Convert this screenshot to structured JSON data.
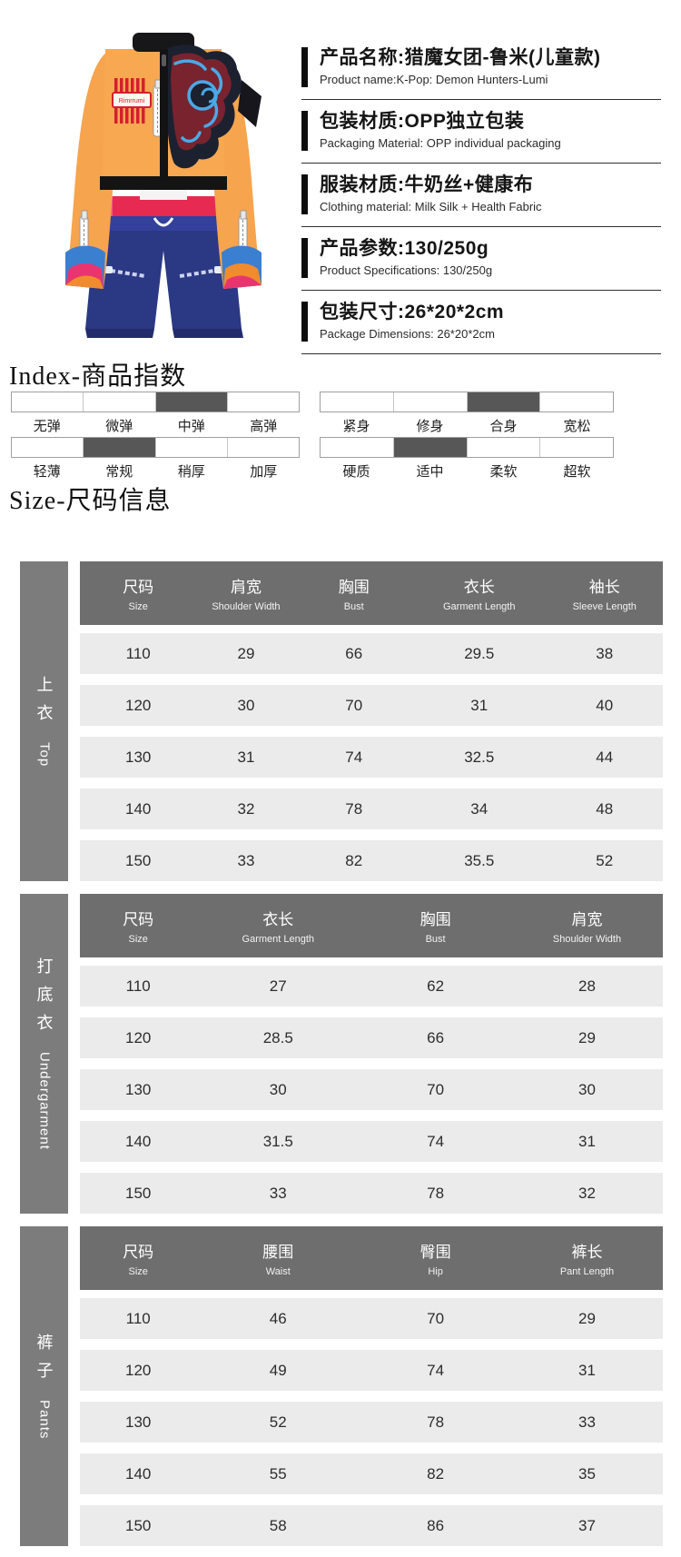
{
  "product": {
    "photo_alt": "orange cropped jacket with cloud print and navy shorts - kids costume",
    "info": [
      {
        "zh": "产品名称:猎魔女团-鲁米(儿童款)",
        "en": "Product name:K-Pop: Demon Hunters-Lumi"
      },
      {
        "zh": "包装材质:OPP独立包装",
        "en": "Packaging Material: OPP individual packaging"
      },
      {
        "zh": "服装材质:牛奶丝+健康布",
        "en": "Clothing material: Milk Silk + Health Fabric"
      },
      {
        "zh": "产品参数:130/250g",
        "en": "Product Specifications: 130/250g"
      },
      {
        "zh": "包装尺寸:26*20*2cm",
        "en": "Package Dimensions: 26*20*2cm"
      }
    ]
  },
  "index_section": {
    "title": "Index-商品指数",
    "groups": [
      {
        "name": "elasticity",
        "labels": [
          "无弹",
          "微弹",
          "中弹",
          "高弹"
        ],
        "selected": 2
      },
      {
        "name": "fit",
        "labels": [
          "紧身",
          "修身",
          "合身",
          "宽松"
        ],
        "selected": 2
      },
      {
        "name": "thickness",
        "labels": [
          "轻薄",
          "常规",
          "稍厚",
          "加厚"
        ],
        "selected": 1
      },
      {
        "name": "softness",
        "labels": [
          "硬质",
          "适中",
          "柔软",
          "超软"
        ],
        "selected": 1
      }
    ]
  },
  "size_section": {
    "title": "Size-尺码信息",
    "tables": [
      {
        "category_zh": "上衣",
        "category_en": "Top",
        "columns": [
          {
            "zh": "尺码",
            "en": "Size"
          },
          {
            "zh": "肩宽",
            "en": "Shoulder Width"
          },
          {
            "zh": "胸围",
            "en": "Bust"
          },
          {
            "zh": "衣长",
            "en": "Garment Length"
          },
          {
            "zh": "袖长",
            "en": "Sleeve Length"
          }
        ],
        "rows": [
          [
            "110",
            "29",
            "66",
            "29.5",
            "38"
          ],
          [
            "120",
            "30",
            "70",
            "31",
            "40"
          ],
          [
            "130",
            "31",
            "74",
            "32.5",
            "44"
          ],
          [
            "140",
            "32",
            "78",
            "34",
            "48"
          ],
          [
            "150",
            "33",
            "82",
            "35.5",
            "52"
          ]
        ]
      },
      {
        "category_zh": "打底衣",
        "category_en": "Undergarment",
        "columns": [
          {
            "zh": "尺码",
            "en": "Size"
          },
          {
            "zh": "衣长",
            "en": "Garment Length"
          },
          {
            "zh": "胸围",
            "en": "Bust"
          },
          {
            "zh": "肩宽",
            "en": "Shoulder Width"
          }
        ],
        "rows": [
          [
            "110",
            "27",
            "62",
            "28"
          ],
          [
            "120",
            "28.5",
            "66",
            "29"
          ],
          [
            "130",
            "30",
            "70",
            "30"
          ],
          [
            "140",
            "31.5",
            "74",
            "31"
          ],
          [
            "150",
            "33",
            "78",
            "32"
          ]
        ]
      },
      {
        "category_zh": "裤子",
        "category_en": "Pants",
        "columns": [
          {
            "zh": "尺码",
            "en": "Size"
          },
          {
            "zh": "腰围",
            "en": "Waist"
          },
          {
            "zh": "臀围",
            "en": "Hip"
          },
          {
            "zh": "裤长",
            "en": "Pant Length"
          }
        ],
        "rows": [
          [
            "110",
            "46",
            "70",
            "29"
          ],
          [
            "120",
            "49",
            "74",
            "31"
          ],
          [
            "130",
            "52",
            "78",
            "33"
          ],
          [
            "140",
            "55",
            "82",
            "35"
          ],
          [
            "150",
            "58",
            "86",
            "37"
          ]
        ]
      }
    ]
  },
  "colors": {
    "info_bar": "#0d0d0d",
    "table_header_bg": "#6e6e6e",
    "table_sidebar_bg": "#7c7c7c",
    "table_row_bg": "#ebebeb",
    "index_fill": "#575757",
    "jacket_orange": "#f6a44d",
    "shorts_navy": "#2b3884",
    "waistband_red": "#e62a52"
  }
}
